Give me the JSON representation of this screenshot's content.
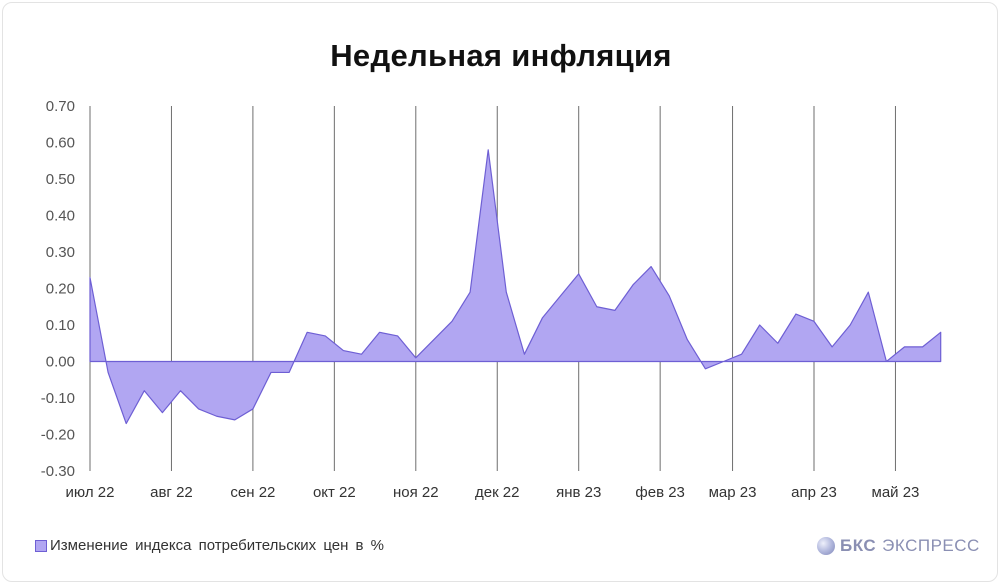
{
  "title": "Недельная инфляция",
  "legend_label": "Изменение индекса потребительских цен в %",
  "brand": {
    "bold": "БКС",
    "name": "ЭКСПРЕСС"
  },
  "colors": {
    "area_fill": "#b1a6f2",
    "area_stroke": "#6e5fd4",
    "grid": "#6e6e6e",
    "axis_text": "#555555"
  },
  "chart_data": {
    "type": "area",
    "title": "Недельная инфляция",
    "ylim": [
      -0.3,
      0.7
    ],
    "y_ticks": [
      "0.70",
      "0.60",
      "0.50",
      "0.40",
      "0.30",
      "0.20",
      "0.10",
      "0.00",
      "-0.10",
      "-0.20",
      "-0.30"
    ],
    "x_tick_labels": [
      "июл 22",
      "авг 22",
      "сен 22",
      "окт 22",
      "ноя 22",
      "дек 22",
      "янв 23",
      "фев 23",
      "мар 23",
      "апр 23",
      "май 23"
    ],
    "x_tick_week_index": [
      0,
      4.5,
      9,
      13.5,
      18,
      22.5,
      27,
      31.5,
      35.5,
      40,
      44.5
    ],
    "grid": "vertical",
    "legend_position": "bottom-left",
    "series": [
      {
        "name": "Изменение индекса потребительских цен в %",
        "values": [
          0.23,
          -0.03,
          -0.17,
          -0.08,
          -0.14,
          -0.08,
          -0.13,
          -0.15,
          -0.16,
          -0.13,
          -0.03,
          -0.03,
          0.08,
          0.07,
          0.03,
          0.02,
          0.08,
          0.07,
          0.01,
          0.06,
          0.11,
          0.19,
          0.58,
          0.19,
          0.02,
          0.12,
          0.18,
          0.24,
          0.15,
          0.14,
          0.21,
          0.26,
          0.18,
          0.06,
          -0.02,
          0.0,
          0.02,
          0.1,
          0.05,
          0.13,
          0.11,
          0.04,
          0.1,
          0.19,
          0.0,
          0.04,
          0.04,
          0.08
        ]
      }
    ]
  }
}
